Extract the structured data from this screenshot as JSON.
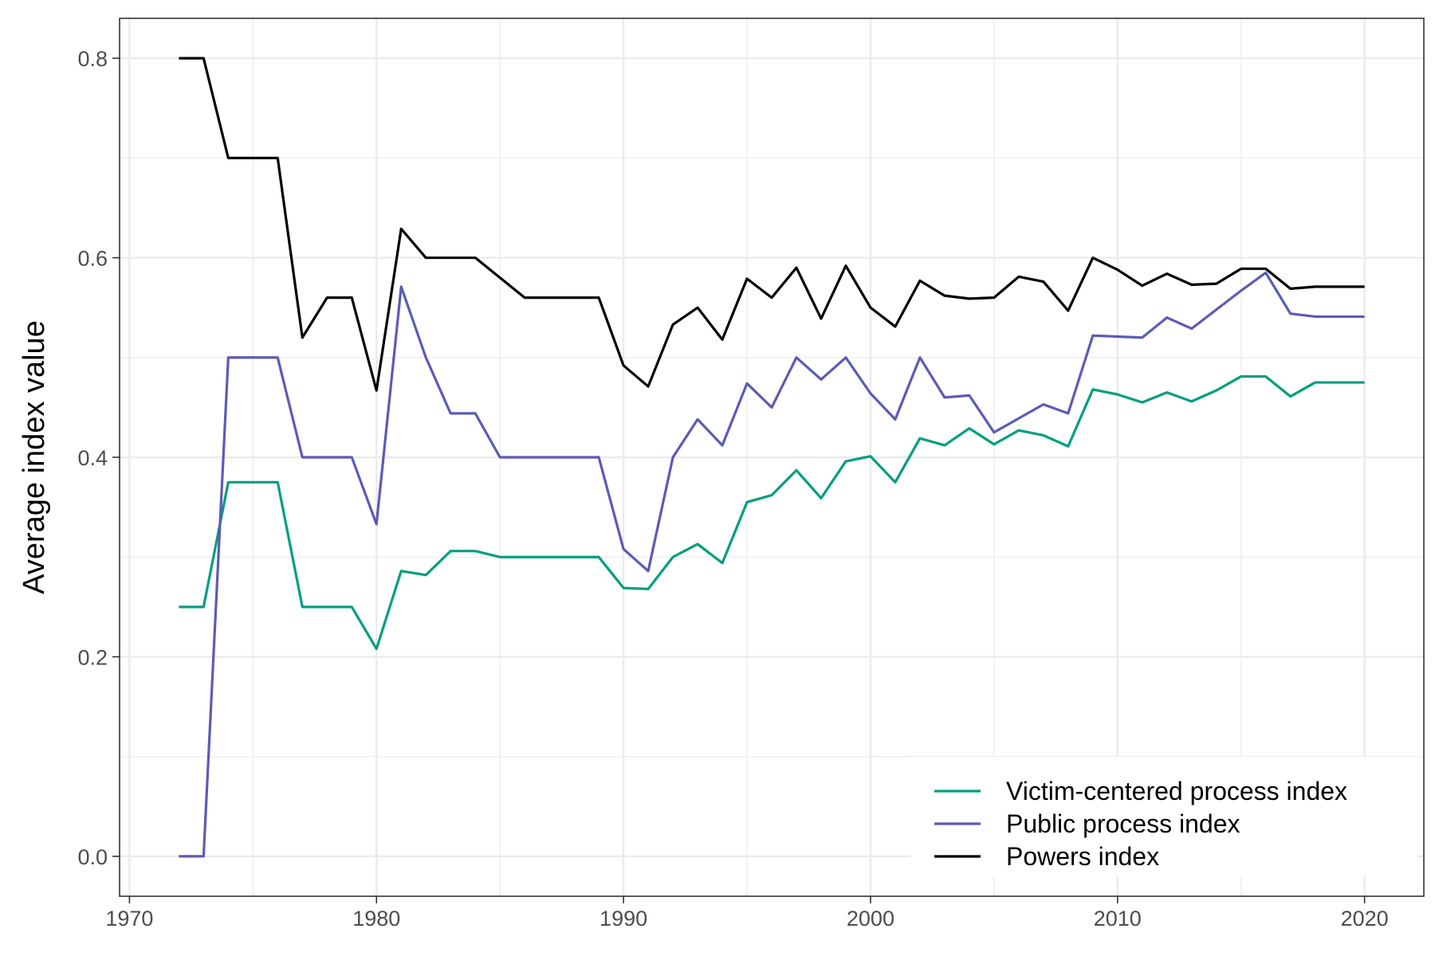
{
  "chart_data": {
    "type": "line",
    "title": "",
    "xlabel": "",
    "ylabel": "Average index value",
    "xlim": [
      1969.6,
      2022.4
    ],
    "ylim": [
      -0.04,
      0.84
    ],
    "x_ticks": [
      1970,
      1980,
      1990,
      2000,
      2010,
      2020
    ],
    "x_minor_ticks": [
      1975,
      1985,
      1995,
      2005,
      2015
    ],
    "y_ticks": [
      0.0,
      0.2,
      0.4,
      0.6,
      0.8
    ],
    "y_tick_labels": [
      "0.0",
      "0.2",
      "0.4",
      "0.6",
      "0.8"
    ],
    "y_minor_ticks": [
      0.1,
      0.3,
      0.5,
      0.7
    ],
    "grid": true,
    "legend_position": "bottom-right",
    "x": [
      1972,
      1973,
      1974,
      1975,
      1976,
      1977,
      1978,
      1979,
      1980,
      1981,
      1982,
      1983,
      1984,
      1985,
      1986,
      1987,
      1988,
      1989,
      1990,
      1991,
      1992,
      1993,
      1994,
      1995,
      1996,
      1997,
      1998,
      1999,
      2000,
      2001,
      2002,
      2003,
      2004,
      2005,
      2006,
      2007,
      2008,
      2009,
      2010,
      2011,
      2012,
      2013,
      2014,
      2015,
      2016,
      2017,
      2018,
      2019,
      2020
    ],
    "series": [
      {
        "name": "Victim-centered process index",
        "color": "#009E80",
        "values": [
          0.25,
          0.25,
          0.375,
          0.375,
          0.375,
          0.25,
          0.25,
          0.25,
          0.208,
          0.286,
          0.282,
          0.306,
          0.306,
          0.3,
          0.3,
          0.3,
          0.3,
          0.3,
          0.269,
          0.268,
          0.3,
          0.313,
          0.294,
          0.355,
          0.362,
          0.387,
          0.359,
          0.396,
          0.401,
          0.375,
          0.419,
          0.412,
          0.429,
          0.413,
          0.427,
          0.422,
          0.411,
          0.468,
          0.463,
          0.455,
          0.465,
          0.456,
          0.467,
          0.481,
          0.481,
          0.461,
          0.475,
          0.475,
          0.475
        ]
      },
      {
        "name": "Public process index",
        "color": "#5B5BB5",
        "values": [
          0.0,
          0.0,
          0.5,
          0.5,
          0.5,
          0.4,
          0.4,
          0.4,
          0.333,
          0.571,
          0.5,
          0.444,
          0.444,
          0.4,
          0.4,
          0.4,
          0.4,
          0.4,
          0.308,
          0.286,
          0.4,
          0.438,
          0.412,
          0.474,
          0.45,
          0.5,
          0.478,
          0.5,
          0.464,
          0.438,
          0.5,
          0.46,
          0.462,
          0.425,
          0.439,
          0.453,
          0.444,
          0.522,
          0.521,
          0.52,
          0.54,
          0.529,
          0.548,
          0.567,
          0.585,
          0.544,
          0.541,
          0.541,
          0.541
        ]
      },
      {
        "name": "Powers index",
        "color": "#000000",
        "values": [
          0.8,
          0.8,
          0.7,
          0.7,
          0.7,
          0.52,
          0.56,
          0.56,
          0.467,
          0.629,
          0.6,
          0.6,
          0.6,
          0.58,
          0.56,
          0.56,
          0.56,
          0.56,
          0.492,
          0.471,
          0.533,
          0.55,
          0.518,
          0.579,
          0.56,
          0.59,
          0.539,
          0.592,
          0.55,
          0.531,
          0.577,
          0.562,
          0.559,
          0.56,
          0.581,
          0.576,
          0.547,
          0.6,
          0.588,
          0.572,
          0.584,
          0.573,
          0.574,
          0.589,
          0.589,
          0.569,
          0.571,
          0.571,
          0.571
        ]
      }
    ]
  }
}
